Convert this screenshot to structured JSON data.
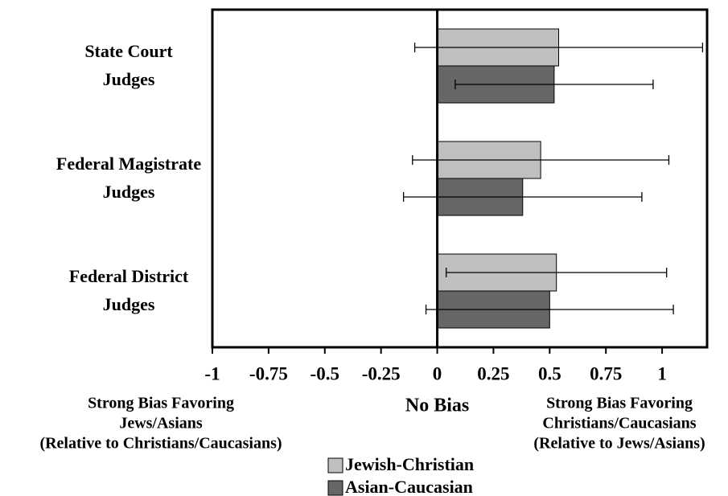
{
  "chart_data": {
    "type": "bar",
    "orientation": "horizontal",
    "categories": [
      [
        "State Court",
        "Judges"
      ],
      [
        "Federal Magistrate",
        "Judges"
      ],
      [
        "Federal District",
        "Judges"
      ]
    ],
    "series": [
      {
        "name": "Jewish-Christian",
        "color": "#bfbfbf",
        "values": [
          0.54,
          0.46,
          0.53
        ],
        "errors": [
          0.64,
          0.57,
          0.49
        ]
      },
      {
        "name": "Asian-Caucasian",
        "color": "#666666",
        "values": [
          0.52,
          0.38,
          0.5
        ],
        "errors": [
          0.44,
          0.53,
          0.55
        ]
      }
    ],
    "xlim": [
      -1,
      1.2
    ],
    "xticks": [
      -1,
      -0.75,
      -0.5,
      -0.25,
      0,
      0.25,
      0.5,
      0.75,
      1
    ],
    "annotations": [
      [
        "Strong Bias Favoring",
        "Jews/Asians",
        "(Relative to Christians/Caucasians)"
      ],
      [
        "No Bias"
      ],
      [
        "Strong Bias Favoring",
        "Christians/Caucasians",
        "(Relative to Jews/Asians)"
      ]
    ],
    "legend": "bottom"
  }
}
